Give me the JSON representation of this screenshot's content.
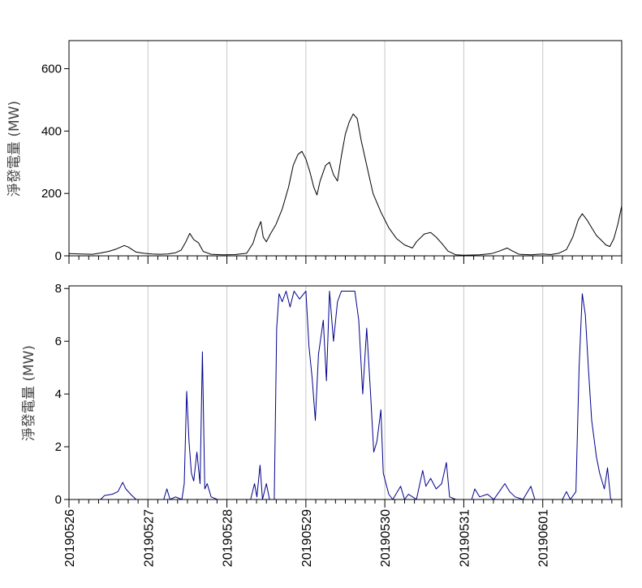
{
  "chart_data": [
    {
      "type": "line",
      "panel": "top",
      "ylabel": "淨發電量 (MW)",
      "ylim": [
        0,
        690
      ],
      "yticks": [
        0,
        200,
        400,
        600
      ],
      "xlim": [
        0,
        7
      ],
      "x_unit": "days since 20190526 00:00",
      "line_color": "#000000",
      "grid": "vertical",
      "series": [
        {
          "name": "",
          "points": [
            [
              0.0,
              7
            ],
            [
              0.15,
              6
            ],
            [
              0.3,
              5
            ],
            [
              0.4,
              9
            ],
            [
              0.5,
              14
            ],
            [
              0.6,
              22
            ],
            [
              0.7,
              33
            ],
            [
              0.75,
              28
            ],
            [
              0.85,
              12
            ],
            [
              0.95,
              8
            ],
            [
              1.05,
              6
            ],
            [
              1.15,
              5
            ],
            [
              1.25,
              6
            ],
            [
              1.35,
              10
            ],
            [
              1.42,
              18
            ],
            [
              1.48,
              45
            ],
            [
              1.53,
              72
            ],
            [
              1.58,
              52
            ],
            [
              1.64,
              42
            ],
            [
              1.7,
              14
            ],
            [
              1.8,
              5
            ],
            [
              1.95,
              3
            ],
            [
              2.1,
              4
            ],
            [
              2.25,
              8
            ],
            [
              2.33,
              40
            ],
            [
              2.38,
              80
            ],
            [
              2.43,
              110
            ],
            [
              2.46,
              60
            ],
            [
              2.5,
              45
            ],
            [
              2.55,
              70
            ],
            [
              2.62,
              100
            ],
            [
              2.7,
              150
            ],
            [
              2.78,
              220
            ],
            [
              2.84,
              290
            ],
            [
              2.9,
              325
            ],
            [
              2.95,
              335
            ],
            [
              3.0,
              310
            ],
            [
              3.05,
              270
            ],
            [
              3.1,
              220
            ],
            [
              3.14,
              195
            ],
            [
              3.18,
              240
            ],
            [
              3.25,
              290
            ],
            [
              3.3,
              300
            ],
            [
              3.35,
              260
            ],
            [
              3.4,
              240
            ],
            [
              3.45,
              320
            ],
            [
              3.5,
              390
            ],
            [
              3.55,
              430
            ],
            [
              3.6,
              455
            ],
            [
              3.65,
              440
            ],
            [
              3.7,
              370
            ],
            [
              3.78,
              280
            ],
            [
              3.85,
              200
            ],
            [
              3.95,
              140
            ],
            [
              4.05,
              90
            ],
            [
              4.15,
              55
            ],
            [
              4.25,
              35
            ],
            [
              4.35,
              25
            ],
            [
              4.4,
              45
            ],
            [
              4.5,
              70
            ],
            [
              4.58,
              75
            ],
            [
              4.65,
              60
            ],
            [
              4.72,
              40
            ],
            [
              4.8,
              15
            ],
            [
              4.9,
              3
            ],
            [
              5.0,
              2
            ],
            [
              5.2,
              3
            ],
            [
              5.35,
              7
            ],
            [
              5.45,
              15
            ],
            [
              5.55,
              25
            ],
            [
              5.62,
              15
            ],
            [
              5.7,
              5
            ],
            [
              5.85,
              3
            ],
            [
              6.0,
              6
            ],
            [
              6.1,
              4
            ],
            [
              6.2,
              8
            ],
            [
              6.3,
              20
            ],
            [
              6.38,
              60
            ],
            [
              6.45,
              115
            ],
            [
              6.5,
              135
            ],
            [
              6.56,
              115
            ],
            [
              6.62,
              90
            ],
            [
              6.68,
              65
            ],
            [
              6.75,
              48
            ],
            [
              6.8,
              35
            ],
            [
              6.85,
              30
            ],
            [
              6.9,
              55
            ],
            [
              6.95,
              100
            ],
            [
              7.0,
              160
            ]
          ]
        }
      ]
    },
    {
      "type": "line",
      "panel": "bottom",
      "ylabel": "淨發電量 (MW)",
      "ylim": [
        0,
        8.1
      ],
      "yticks": [
        0,
        2,
        4,
        6,
        8
      ],
      "xlim": [
        0,
        7
      ],
      "x_unit": "days since 20190526 00:00",
      "xtick_labels": [
        "20190526",
        "20190527",
        "20190528",
        "20190529",
        "20190530",
        "20190531",
        "20190601"
      ],
      "line_color": "#00008b",
      "grid": "vertical",
      "series": [
        {
          "name": "",
          "points": [
            [
              0.0,
              0
            ],
            [
              0.4,
              0
            ],
            [
              0.45,
              0.15
            ],
            [
              0.55,
              0.2
            ],
            [
              0.62,
              0.3
            ],
            [
              0.68,
              0.65
            ],
            [
              0.72,
              0.4
            ],
            [
              0.78,
              0.2
            ],
            [
              0.85,
              0
            ],
            [
              1.2,
              0
            ],
            [
              1.24,
              0.4
            ],
            [
              1.28,
              0
            ],
            [
              1.35,
              0.1
            ],
            [
              1.43,
              0
            ],
            [
              1.46,
              0.6
            ],
            [
              1.49,
              4.1
            ],
            [
              1.52,
              2.2
            ],
            [
              1.55,
              1.0
            ],
            [
              1.58,
              0.7
            ],
            [
              1.62,
              1.8
            ],
            [
              1.66,
              0.6
            ],
            [
              1.69,
              5.6
            ],
            [
              1.72,
              0.4
            ],
            [
              1.75,
              0.6
            ],
            [
              1.8,
              0.1
            ],
            [
              1.88,
              0
            ],
            [
              2.3,
              0
            ],
            [
              2.35,
              0.6
            ],
            [
              2.38,
              0.1
            ],
            [
              2.42,
              1.3
            ],
            [
              2.45,
              0
            ],
            [
              2.5,
              0.6
            ],
            [
              2.54,
              0
            ],
            [
              2.6,
              0
            ],
            [
              2.63,
              6.5
            ],
            [
              2.66,
              7.8
            ],
            [
              2.7,
              7.5
            ],
            [
              2.75,
              7.9
            ],
            [
              2.8,
              7.3
            ],
            [
              2.85,
              7.9
            ],
            [
              2.92,
              7.6
            ],
            [
              3.0,
              7.9
            ],
            [
              3.04,
              5.8
            ],
            [
              3.08,
              4.6
            ],
            [
              3.12,
              3.0
            ],
            [
              3.16,
              5.5
            ],
            [
              3.22,
              6.8
            ],
            [
              3.26,
              4.5
            ],
            [
              3.3,
              7.9
            ],
            [
              3.35,
              6.0
            ],
            [
              3.4,
              7.5
            ],
            [
              3.45,
              7.9
            ],
            [
              3.55,
              7.9
            ],
            [
              3.62,
              7.9
            ],
            [
              3.67,
              6.8
            ],
            [
              3.72,
              4.0
            ],
            [
              3.77,
              6.5
            ],
            [
              3.82,
              4.0
            ],
            [
              3.86,
              1.8
            ],
            [
              3.9,
              2.2
            ],
            [
              3.95,
              3.4
            ],
            [
              3.98,
              1.0
            ],
            [
              4.05,
              0.2
            ],
            [
              4.1,
              0
            ],
            [
              4.2,
              0.5
            ],
            [
              4.25,
              0
            ],
            [
              4.3,
              0.2
            ],
            [
              4.4,
              0
            ],
            [
              4.48,
              1.1
            ],
            [
              4.52,
              0.5
            ],
            [
              4.58,
              0.8
            ],
            [
              4.65,
              0.4
            ],
            [
              4.72,
              0.6
            ],
            [
              4.78,
              1.4
            ],
            [
              4.82,
              0.1
            ],
            [
              4.9,
              0
            ],
            [
              5.1,
              0
            ],
            [
              5.14,
              0.4
            ],
            [
              5.2,
              0.1
            ],
            [
              5.3,
              0.2
            ],
            [
              5.38,
              0
            ],
            [
              5.45,
              0.3
            ],
            [
              5.52,
              0.6
            ],
            [
              5.58,
              0.3
            ],
            [
              5.65,
              0.1
            ],
            [
              5.75,
              0
            ],
            [
              5.85,
              0.5
            ],
            [
              5.9,
              0
            ],
            [
              6.25,
              0
            ],
            [
              6.3,
              0.3
            ],
            [
              6.35,
              0
            ],
            [
              6.42,
              0.3
            ],
            [
              6.46,
              5.0
            ],
            [
              6.5,
              7.8
            ],
            [
              6.54,
              7.0
            ],
            [
              6.58,
              4.9
            ],
            [
              6.62,
              3.0
            ],
            [
              6.68,
              1.6
            ],
            [
              6.72,
              1.0
            ],
            [
              6.78,
              0.4
            ],
            [
              6.82,
              1.2
            ],
            [
              6.86,
              0
            ],
            [
              7.0,
              0
            ]
          ]
        }
      ]
    }
  ]
}
